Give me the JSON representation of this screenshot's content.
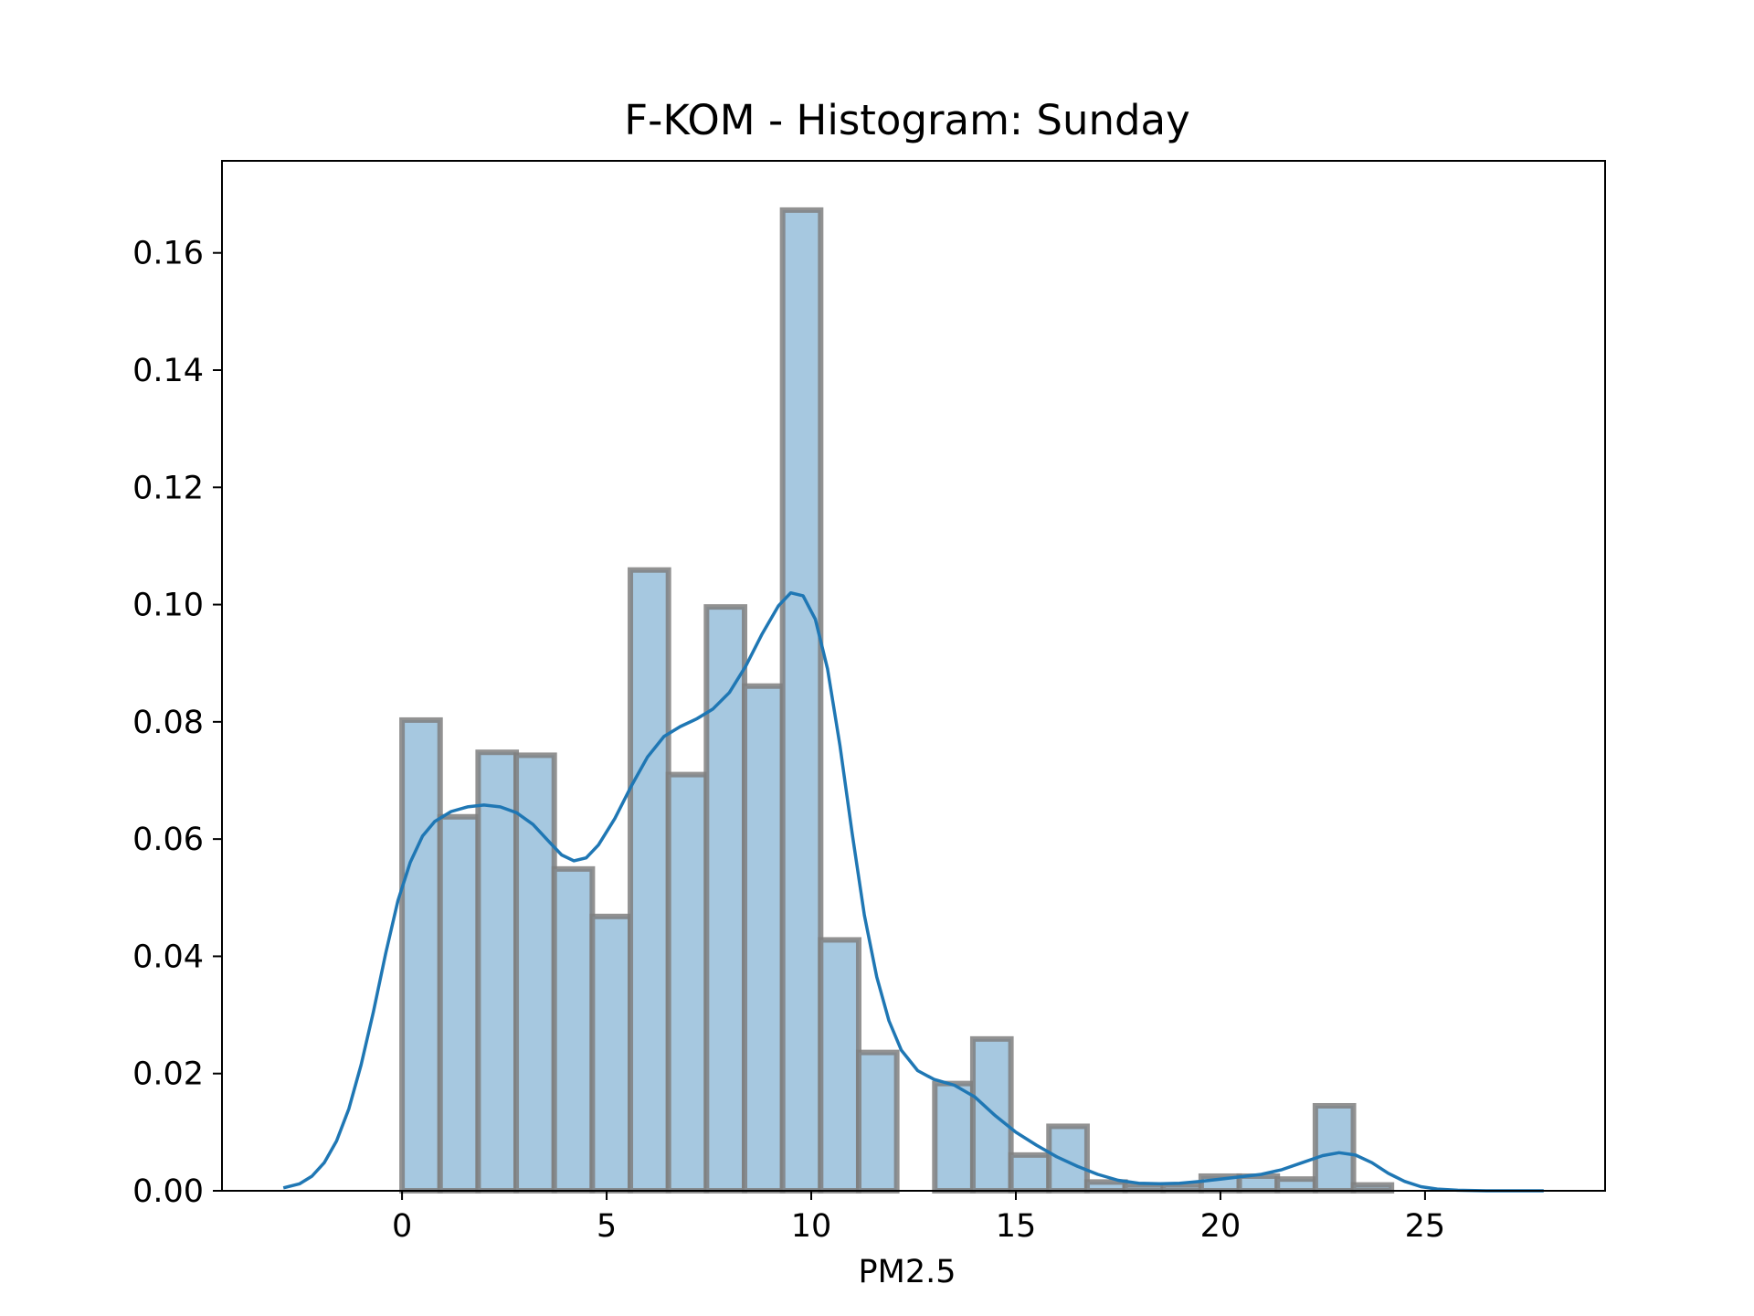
{
  "chart_data": {
    "type": "bar",
    "title": "F-KOM - Histogram: Sunday",
    "xlabel": "PM2.5",
    "ylabel": "",
    "xlim": [
      -4.4,
      29.4
    ],
    "ylim": [
      0,
      0.1757
    ],
    "grid": false,
    "legend": "none",
    "bar_color": "#a6c8e0",
    "bar_edge_color": "#7f7f7f",
    "line_color": "#1f77b4",
    "xticks": [
      {
        "value": 0,
        "label": "0"
      },
      {
        "value": 5,
        "label": "5"
      },
      {
        "value": 10,
        "label": "10"
      },
      {
        "value": 15,
        "label": "15"
      },
      {
        "value": 20,
        "label": "20"
      },
      {
        "value": 25,
        "label": "25"
      }
    ],
    "yticks": [
      {
        "value": 0.0,
        "label": "0.00"
      },
      {
        "value": 0.02,
        "label": "0.02"
      },
      {
        "value": 0.04,
        "label": "0.04"
      },
      {
        "value": 0.06,
        "label": "0.06"
      },
      {
        "value": 0.08,
        "label": "0.08"
      },
      {
        "value": 0.1,
        "label": "0.10"
      },
      {
        "value": 0.12,
        "label": "0.12"
      },
      {
        "value": 0.14,
        "label": "0.14"
      },
      {
        "value": 0.16,
        "label": "0.16"
      }
    ],
    "bin_width": 0.93,
    "bins": [
      {
        "x0": 0.0,
        "value": 0.0803
      },
      {
        "x0": 0.93,
        "value": 0.0638
      },
      {
        "x0": 1.86,
        "value": 0.0748
      },
      {
        "x0": 2.79,
        "value": 0.0743
      },
      {
        "x0": 3.72,
        "value": 0.0549
      },
      {
        "x0": 4.65,
        "value": 0.0468
      },
      {
        "x0": 5.58,
        "value": 0.1059
      },
      {
        "x0": 6.51,
        "value": 0.071
      },
      {
        "x0": 7.44,
        "value": 0.0996
      },
      {
        "x0": 8.37,
        "value": 0.0861
      },
      {
        "x0": 9.3,
        "value": 0.1673
      },
      {
        "x0": 10.23,
        "value": 0.0428
      },
      {
        "x0": 11.16,
        "value": 0.0236
      },
      {
        "x0": 12.09,
        "value": 0.0
      },
      {
        "x0": 13.02,
        "value": 0.0183
      },
      {
        "x0": 13.95,
        "value": 0.0259
      },
      {
        "x0": 14.88,
        "value": 0.0061
      },
      {
        "x0": 15.81,
        "value": 0.011
      },
      {
        "x0": 16.74,
        "value": 0.0015
      },
      {
        "x0": 17.67,
        "value": 0.001
      },
      {
        "x0": 18.6,
        "value": 0.001
      },
      {
        "x0": 19.53,
        "value": 0.0025
      },
      {
        "x0": 20.46,
        "value": 0.0025
      },
      {
        "x0": 21.39,
        "value": 0.002
      },
      {
        "x0": 22.32,
        "value": 0.0145
      },
      {
        "x0": 23.25,
        "value": 0.001
      }
    ],
    "kde": {
      "name": "KDE",
      "points": [
        [
          -2.9,
          0.0005
        ],
        [
          -2.5,
          0.0012
        ],
        [
          -2.2,
          0.0025
        ],
        [
          -1.9,
          0.0048
        ],
        [
          -1.6,
          0.0085
        ],
        [
          -1.3,
          0.014
        ],
        [
          -1.0,
          0.0215
        ],
        [
          -0.7,
          0.0305
        ],
        [
          -0.4,
          0.0405
        ],
        [
          -0.1,
          0.0495
        ],
        [
          0.2,
          0.056
        ],
        [
          0.5,
          0.0605
        ],
        [
          0.8,
          0.063
        ],
        [
          1.2,
          0.0647
        ],
        [
          1.6,
          0.0655
        ],
        [
          2.0,
          0.0658
        ],
        [
          2.4,
          0.0655
        ],
        [
          2.8,
          0.0645
        ],
        [
          3.2,
          0.0625
        ],
        [
          3.6,
          0.0595
        ],
        [
          3.9,
          0.0573
        ],
        [
          4.2,
          0.0563
        ],
        [
          4.5,
          0.0568
        ],
        [
          4.8,
          0.059
        ],
        [
          5.2,
          0.0635
        ],
        [
          5.6,
          0.069
        ],
        [
          6.0,
          0.074
        ],
        [
          6.4,
          0.0775
        ],
        [
          6.8,
          0.0792
        ],
        [
          7.2,
          0.0805
        ],
        [
          7.6,
          0.0822
        ],
        [
          8.0,
          0.085
        ],
        [
          8.4,
          0.0895
        ],
        [
          8.8,
          0.095
        ],
        [
          9.2,
          0.0998
        ],
        [
          9.5,
          0.102
        ],
        [
          9.8,
          0.1015
        ],
        [
          10.1,
          0.0975
        ],
        [
          10.4,
          0.089
        ],
        [
          10.7,
          0.076
        ],
        [
          11.0,
          0.061
        ],
        [
          11.3,
          0.047
        ],
        [
          11.6,
          0.0365
        ],
        [
          11.9,
          0.029
        ],
        [
          12.2,
          0.024
        ],
        [
          12.6,
          0.0205
        ],
        [
          13.0,
          0.019
        ],
        [
          13.5,
          0.018
        ],
        [
          14.0,
          0.016
        ],
        [
          14.5,
          0.0128
        ],
        [
          15.0,
          0.01
        ],
        [
          15.5,
          0.0078
        ],
        [
          16.0,
          0.0058
        ],
        [
          16.5,
          0.0042
        ],
        [
          17.0,
          0.0028
        ],
        [
          17.5,
          0.0018
        ],
        [
          18.0,
          0.0013
        ],
        [
          18.5,
          0.0012
        ],
        [
          19.0,
          0.0013
        ],
        [
          19.5,
          0.0016
        ],
        [
          20.0,
          0.002
        ],
        [
          20.5,
          0.0024
        ],
        [
          21.0,
          0.0028
        ],
        [
          21.5,
          0.0036
        ],
        [
          22.0,
          0.0048
        ],
        [
          22.5,
          0.006
        ],
        [
          22.9,
          0.0065
        ],
        [
          23.3,
          0.0061
        ],
        [
          23.7,
          0.0048
        ],
        [
          24.1,
          0.003
        ],
        [
          24.5,
          0.0016
        ],
        [
          24.9,
          0.0007
        ],
        [
          25.3,
          0.0003
        ],
        [
          25.8,
          0.0001
        ],
        [
          26.5,
          0.0
        ],
        [
          27.9,
          0.0
        ]
      ]
    }
  }
}
